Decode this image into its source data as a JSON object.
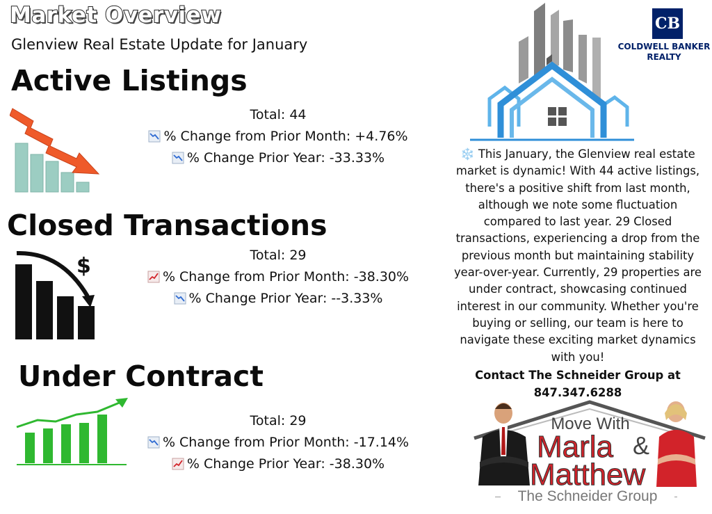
{
  "header": {
    "title": "Market Overview",
    "subtitle": "Glenview Real Estate Update for January"
  },
  "sections": [
    {
      "heading": "Active Listings",
      "total": "Total: 44",
      "month_change": "% Change from Prior Month: +4.76%",
      "year_change": "% Change Prior Year: -33.33%",
      "month_icon": "chart-decreasing-icon",
      "year_icon": "chart-decreasing-icon"
    },
    {
      "heading": "Closed Transactions",
      "total": "Total: 29",
      "month_change": "% Change from Prior Month: -38.30%",
      "year_change": "% Change Prior Year: --3.33%",
      "month_icon": "chart-increasing-icon",
      "year_icon": "chart-decreasing-icon"
    },
    {
      "heading": "Under Contract",
      "total": "Total: 29",
      "month_change": "% Change from Prior Month: -17.14%",
      "year_change": "% Change Prior Year: -38.30%",
      "month_icon": "chart-decreasing-icon",
      "year_icon": "chart-increasing-icon"
    }
  ],
  "brand": {
    "line1": "COLDWELL BANKER",
    "line2": "REALTY",
    "monogram": "CB",
    "color": "#012169"
  },
  "description": "❄️ This January, the Glenview real estate market is dynamic! With 44 active listings, there's a positive shift from last month, although we note some fluctuation compared to last year. 29 Closed transactions, experiencing a drop from the previous month but maintaining stability year-over-year. Currently, 29 properties are under contract, showcasing continued interest in our community. Whether you're buying or selling, our team is here to navigate these exciting market dynamics with you!",
  "contact": {
    "line1": "Contact The Schneider Group at",
    "phone": "847.347.6288"
  },
  "team_logo": {
    "line1": "Move With",
    "name1": "Marla",
    "amp": "&",
    "name2": "Matthew",
    "group": "The Schneider Group"
  },
  "colors": {
    "accent_red": "#d2232a",
    "accent_blue": "#2f8fd8",
    "building_gray": "#8a8a8a",
    "bar_teal": "#9ccdc2",
    "arrow_orange": "#ef5a2a",
    "bar_green": "#2fb830"
  }
}
